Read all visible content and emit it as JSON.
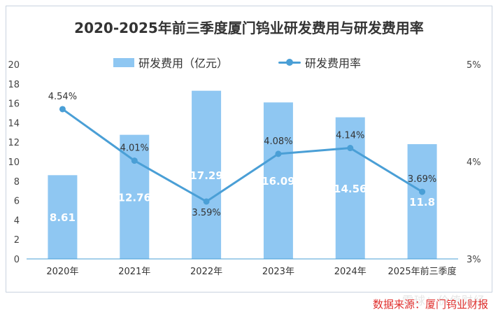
{
  "chart_data": {
    "type": "bar+line",
    "title": "2020-2025年前三季度厦门钨业研发费用与研发费用率",
    "categories": [
      "2020年",
      "2021年",
      "2022年",
      "2023年",
      "2024年",
      "2025年前三季度"
    ],
    "series": [
      {
        "name": "研发费用（亿元）",
        "type": "bar",
        "axis": "left",
        "values": [
          8.61,
          12.76,
          17.29,
          16.09,
          14.56,
          11.8
        ],
        "labels": [
          "8.61",
          "12.76",
          "17.29",
          "16.09",
          "14.56",
          "11.8"
        ],
        "color": "#8fc7f2"
      },
      {
        "name": "研发费用率",
        "type": "line",
        "axis": "right",
        "values": [
          4.54,
          4.01,
          3.59,
          4.08,
          4.14,
          3.69
        ],
        "labels": [
          "4.54%",
          "4.01%",
          "3.59%",
          "4.08%",
          "4.14%",
          "3.69%"
        ],
        "color": "#4a9fd6"
      }
    ],
    "y_left": {
      "min": 0,
      "max": 20,
      "ticks": [
        "0",
        "2",
        "4",
        "6",
        "8",
        "10",
        "12",
        "14",
        "16",
        "18",
        "20"
      ]
    },
    "y_right": {
      "min": 3,
      "max": 5,
      "ticks": [
        "3%",
        "4%",
        "5%"
      ]
    },
    "legend_position": "top",
    "grid": false
  },
  "source_note": "数据来源：厦门钨业财报",
  "watermark": "雪球：价值财经"
}
